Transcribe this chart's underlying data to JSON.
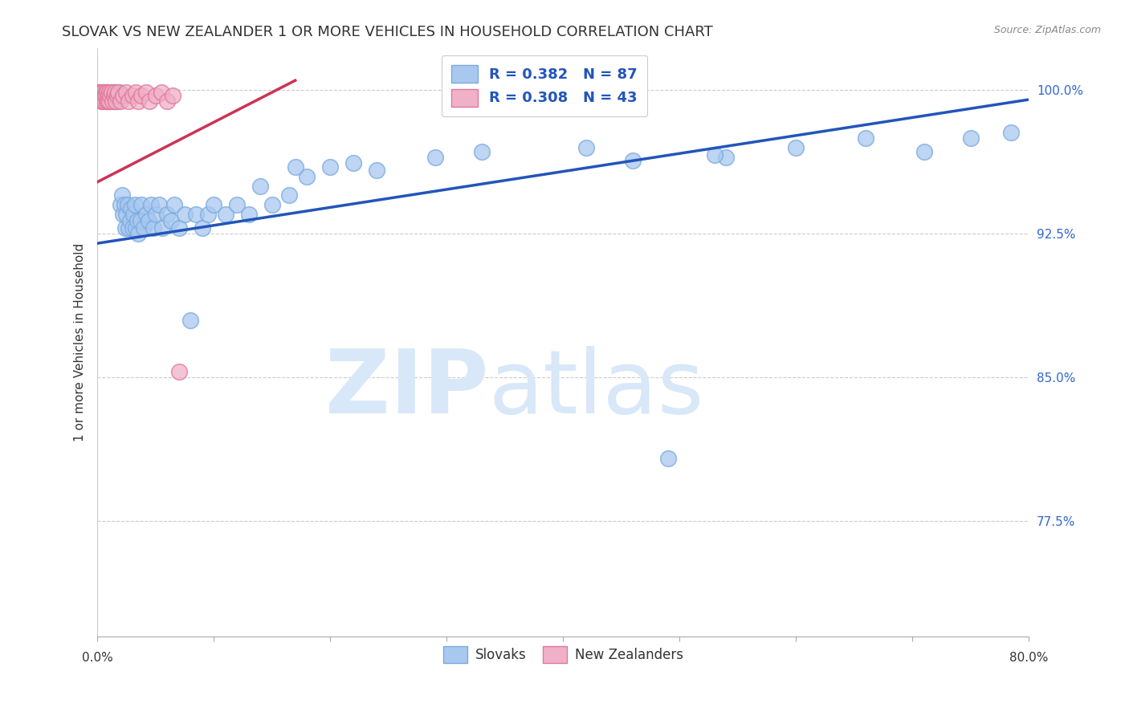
{
  "title": "SLOVAK VS NEW ZEALANDER 1 OR MORE VEHICLES IN HOUSEHOLD CORRELATION CHART",
  "source": "Source: ZipAtlas.com",
  "ylabel": "1 or more Vehicles in Household",
  "y_tick_labels": [
    "77.5%",
    "85.0%",
    "92.5%",
    "100.0%"
  ],
  "y_tick_values": [
    0.775,
    0.85,
    0.925,
    1.0
  ],
  "x_lim": [
    0.0,
    0.8
  ],
  "y_lim": [
    0.715,
    1.022
  ],
  "legend_blue_label": "R = 0.382   N = 87",
  "legend_pink_label": "R = 0.308   N = 43",
  "blue_color": "#a8c8f0",
  "blue_edge_color": "#7aaade",
  "pink_color": "#f0b0c8",
  "pink_edge_color": "#e07898",
  "blue_line_color": "#2255bb",
  "pink_line_color": "#cc3355",
  "watermark_zip": "ZIP",
  "watermark_atlas": "atlas",
  "watermark_color": "#d8e8f8",
  "title_fontsize": 13,
  "axis_label_fontsize": 11,
  "tick_fontsize": 11,
  "source_fontsize": 9,
  "blue_line_x": [
    0.0,
    0.8
  ],
  "blue_line_y": [
    0.92,
    0.995
  ],
  "pink_line_x": [
    0.0,
    0.17
  ],
  "pink_line_y": [
    0.952,
    1.005
  ],
  "blue_x": [
    0.001,
    0.002,
    0.003,
    0.004,
    0.005,
    0.005,
    0.006,
    0.006,
    0.007,
    0.008,
    0.008,
    0.009,
    0.009,
    0.01,
    0.01,
    0.011,
    0.011,
    0.012,
    0.012,
    0.013,
    0.014,
    0.014,
    0.015,
    0.016,
    0.016,
    0.017,
    0.018,
    0.019,
    0.02,
    0.021,
    0.022,
    0.023,
    0.024,
    0.025,
    0.026,
    0.027,
    0.028,
    0.029,
    0.03,
    0.031,
    0.032,
    0.033,
    0.034,
    0.035,
    0.037,
    0.038,
    0.04,
    0.042,
    0.044,
    0.046,
    0.048,
    0.05,
    0.053,
    0.056,
    0.06,
    0.063,
    0.066,
    0.07,
    0.075,
    0.08,
    0.085,
    0.09,
    0.095,
    0.1,
    0.11,
    0.12,
    0.13,
    0.14,
    0.15,
    0.165,
    0.18,
    0.2,
    0.22,
    0.24,
    0.17,
    0.29,
    0.33,
    0.42,
    0.49,
    0.54,
    0.6,
    0.66,
    0.71,
    0.75,
    0.785,
    0.53,
    0.46
  ],
  "blue_y": [
    0.997,
    0.999,
    0.998,
    0.997,
    0.999,
    0.997,
    0.999,
    0.998,
    0.997,
    0.999,
    0.994,
    0.997,
    0.999,
    0.994,
    0.997,
    0.997,
    0.994,
    0.999,
    0.994,
    0.997,
    0.999,
    0.994,
    0.994,
    0.997,
    0.999,
    0.994,
    0.997,
    0.999,
    0.94,
    0.945,
    0.935,
    0.94,
    0.928,
    0.935,
    0.94,
    0.928,
    0.932,
    0.938,
    0.928,
    0.935,
    0.94,
    0.928,
    0.932,
    0.925,
    0.932,
    0.94,
    0.928,
    0.935,
    0.932,
    0.94,
    0.928,
    0.935,
    0.94,
    0.928,
    0.935,
    0.932,
    0.94,
    0.928,
    0.935,
    0.88,
    0.935,
    0.928,
    0.935,
    0.94,
    0.935,
    0.94,
    0.935,
    0.95,
    0.94,
    0.945,
    0.955,
    0.96,
    0.962,
    0.958,
    0.96,
    0.965,
    0.968,
    0.97,
    0.808,
    0.965,
    0.97,
    0.975,
    0.968,
    0.975,
    0.978,
    0.966,
    0.963
  ],
  "pink_x": [
    0.001,
    0.001,
    0.002,
    0.002,
    0.003,
    0.003,
    0.004,
    0.004,
    0.005,
    0.005,
    0.006,
    0.006,
    0.007,
    0.007,
    0.008,
    0.008,
    0.009,
    0.009,
    0.01,
    0.01,
    0.011,
    0.012,
    0.013,
    0.014,
    0.015,
    0.016,
    0.017,
    0.018,
    0.02,
    0.022,
    0.025,
    0.027,
    0.03,
    0.033,
    0.035,
    0.038,
    0.042,
    0.045,
    0.05,
    0.055,
    0.06,
    0.065,
    0.07
  ],
  "pink_y": [
    0.999,
    0.997,
    0.999,
    0.997,
    0.997,
    0.994,
    0.999,
    0.997,
    0.994,
    0.999,
    0.997,
    0.994,
    0.999,
    0.997,
    0.994,
    0.999,
    0.997,
    0.994,
    0.999,
    0.994,
    0.997,
    0.999,
    0.994,
    0.997,
    0.999,
    0.994,
    0.997,
    0.999,
    0.994,
    0.997,
    0.999,
    0.994,
    0.997,
    0.999,
    0.994,
    0.997,
    0.999,
    0.994,
    0.997,
    0.999,
    0.994,
    0.997,
    0.853
  ]
}
